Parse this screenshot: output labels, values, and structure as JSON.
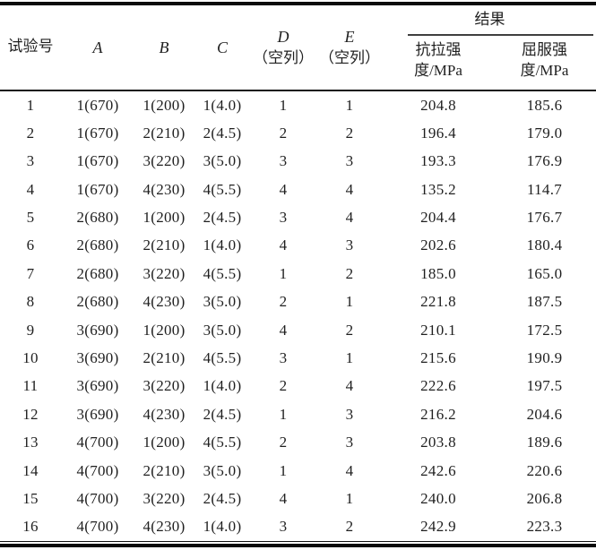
{
  "table": {
    "header": {
      "test_no": "试验号",
      "factor_a": "A",
      "factor_b": "B",
      "factor_c": "C",
      "factor_d": "D",
      "factor_d_note": "（空列）",
      "factor_e": "E",
      "factor_e_note": "（空列）",
      "result_group": "结果",
      "tensile_strength": "抗拉强\n度/MPa",
      "yield_strength": "屈服强\n度/MPa"
    },
    "rows": [
      [
        "1",
        "1(670)",
        "1(200)",
        "1(4.0)",
        "1",
        "1",
        "204.8",
        "185.6"
      ],
      [
        "2",
        "1(670)",
        "2(210)",
        "2(4.5)",
        "2",
        "2",
        "196.4",
        "179.0"
      ],
      [
        "3",
        "1(670)",
        "3(220)",
        "3(5.0)",
        "3",
        "3",
        "193.3",
        "176.9"
      ],
      [
        "4",
        "1(670)",
        "4(230)",
        "4(5.5)",
        "4",
        "4",
        "135.2",
        "114.7"
      ],
      [
        "5",
        "2(680)",
        "1(200)",
        "2(4.5)",
        "3",
        "4",
        "204.4",
        "176.7"
      ],
      [
        "6",
        "2(680)",
        "2(210)",
        "1(4.0)",
        "4",
        "3",
        "202.6",
        "180.4"
      ],
      [
        "7",
        "2(680)",
        "3(220)",
        "4(5.5)",
        "1",
        "2",
        "185.0",
        "165.0"
      ],
      [
        "8",
        "2(680)",
        "4(230)",
        "3(5.0)",
        "2",
        "1",
        "221.8",
        "187.5"
      ],
      [
        "9",
        "3(690)",
        "1(200)",
        "3(5.0)",
        "4",
        "2",
        "210.1",
        "172.5"
      ],
      [
        "10",
        "3(690)",
        "2(210)",
        "4(5.5)",
        "3",
        "1",
        "215.6",
        "190.9"
      ],
      [
        "11",
        "3(690)",
        "3(220)",
        "1(4.0)",
        "2",
        "4",
        "222.6",
        "197.5"
      ],
      [
        "12",
        "3(690)",
        "4(230)",
        "2(4.5)",
        "1",
        "3",
        "216.2",
        "204.6"
      ],
      [
        "13",
        "4(700)",
        "1(200)",
        "4(5.5)",
        "2",
        "3",
        "203.8",
        "189.6"
      ],
      [
        "14",
        "4(700)",
        "2(210)",
        "3(5.0)",
        "1",
        "4",
        "242.6",
        "220.6"
      ],
      [
        "15",
        "4(700)",
        "3(220)",
        "2(4.5)",
        "4",
        "1",
        "240.0",
        "206.8"
      ],
      [
        "16",
        "4(700)",
        "4(230)",
        "1(4.0)",
        "3",
        "2",
        "242.9",
        "223.3"
      ]
    ]
  }
}
